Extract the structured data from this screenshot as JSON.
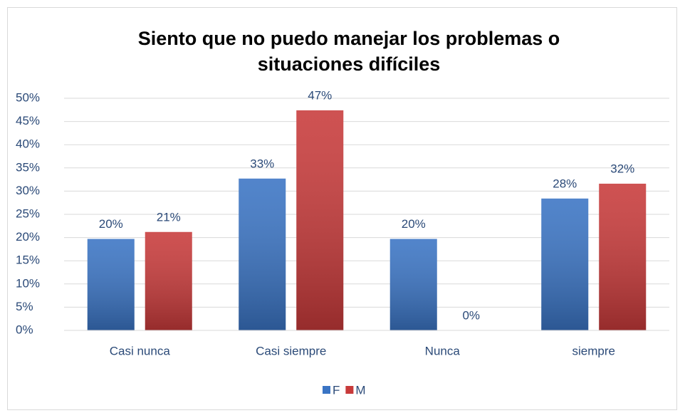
{
  "chart_data": {
    "type": "bar",
    "title": [
      "Siento que no puedo manejar los problemas o",
      "situaciones difíciles"
    ],
    "categories": [
      "Casi nunca",
      "Casi siempre",
      "Nunca",
      "siempre"
    ],
    "series": [
      {
        "name": "F",
        "color": "#3a74c4",
        "values": [
          19.7,
          32.7,
          19.7,
          28.4
        ],
        "value_labels": [
          "20%",
          "33%",
          "20%",
          "28%"
        ]
      },
      {
        "name": "M",
        "color": "#c83a3a",
        "values": [
          21.2,
          47.4,
          0,
          31.6
        ],
        "value_labels": [
          "21%",
          "47%",
          "0%",
          "32%"
        ]
      }
    ],
    "ylim": [
      0,
      50
    ],
    "yticks": [
      {
        "value": 0,
        "label": "0%"
      },
      {
        "value": 5,
        "label": "5%"
      },
      {
        "value": 10,
        "label": "10%"
      },
      {
        "value": 15,
        "label": "15%"
      },
      {
        "value": 20,
        "label": "20%"
      },
      {
        "value": 25,
        "label": "25%"
      },
      {
        "value": 30,
        "label": "30%"
      },
      {
        "value": 35,
        "label": "35%"
      },
      {
        "value": 40,
        "label": "40%"
      },
      {
        "value": 45,
        "label": "45%"
      },
      {
        "value": 50,
        "label": "50%"
      }
    ],
    "grid": true,
    "legend": "bottom"
  }
}
